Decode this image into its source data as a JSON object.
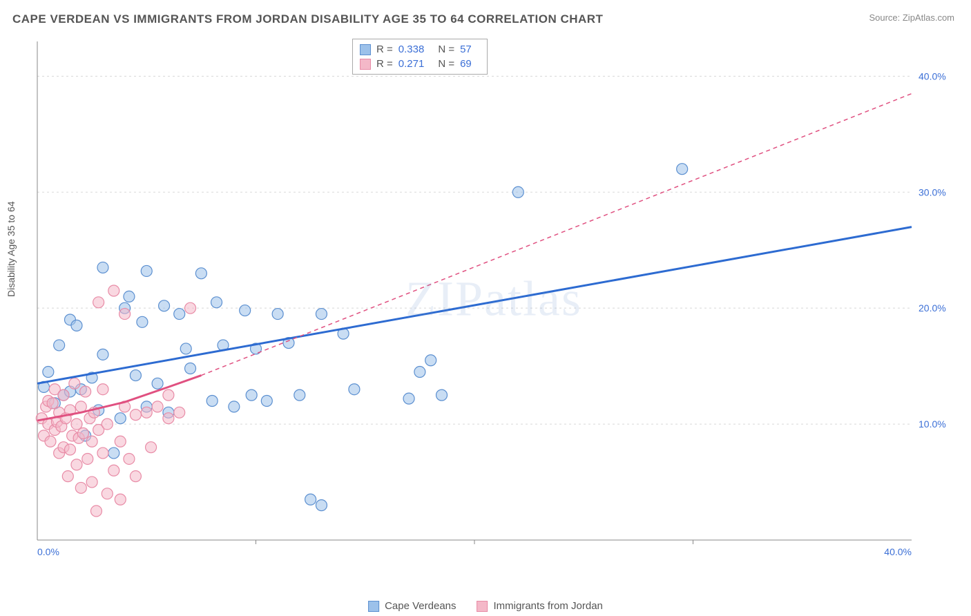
{
  "header": {
    "title": "CAPE VERDEAN VS IMMIGRANTS FROM JORDAN DISABILITY AGE 35 TO 64 CORRELATION CHART",
    "source": "Source: ZipAtlas.com"
  },
  "watermark": "ZIPatlas",
  "chart": {
    "type": "scatter",
    "y_axis_label": "Disability Age 35 to 64",
    "xlim": [
      0,
      40
    ],
    "ylim": [
      0,
      43
    ],
    "x_ticks": [
      0,
      40
    ],
    "x_tick_labels": [
      "0.0%",
      "40.0%"
    ],
    "y_ticks": [
      10,
      20,
      30,
      40
    ],
    "y_tick_labels": [
      "10.0%",
      "20.0%",
      "30.0%",
      "40.0%"
    ],
    "grid_color": "#d8d8d8",
    "axis_color": "#888888",
    "background_color": "#ffffff",
    "marker_radius": 8,
    "marker_opacity": 0.55,
    "trend_line_width_solid": 3,
    "trend_line_width_dashed": 1.5,
    "series": [
      {
        "name": "Cape Verdeans",
        "fill_color": "#9cc1ea",
        "stroke_color": "#5b8fd0",
        "trend_color": "#2d6bd1",
        "trend_style": "solid",
        "r_value": "0.338",
        "n_value": "57",
        "trend": {
          "x1": 0,
          "y1": 13.5,
          "x2": 40,
          "y2": 27
        },
        "points": [
          [
            0.3,
            13.2
          ],
          [
            0.5,
            14.5
          ],
          [
            0.8,
            11.8
          ],
          [
            1.0,
            16.8
          ],
          [
            1.2,
            12.5
          ],
          [
            1.5,
            19.0
          ],
          [
            1.5,
            12.8
          ],
          [
            1.8,
            18.5
          ],
          [
            2.0,
            13.0
          ],
          [
            2.2,
            9.0
          ],
          [
            2.5,
            14.0
          ],
          [
            2.8,
            11.2
          ],
          [
            3.0,
            16.0
          ],
          [
            3.0,
            23.5
          ],
          [
            3.5,
            7.5
          ],
          [
            3.8,
            10.5
          ],
          [
            4.0,
            20.0
          ],
          [
            4.2,
            21.0
          ],
          [
            4.5,
            14.2
          ],
          [
            4.8,
            18.8
          ],
          [
            5.0,
            11.5
          ],
          [
            5.0,
            23.2
          ],
          [
            5.5,
            13.5
          ],
          [
            5.8,
            20.2
          ],
          [
            6.0,
            11.0
          ],
          [
            6.5,
            19.5
          ],
          [
            6.8,
            16.5
          ],
          [
            7.0,
            14.8
          ],
          [
            7.5,
            23.0
          ],
          [
            8.0,
            12.0
          ],
          [
            8.2,
            20.5
          ],
          [
            8.5,
            16.8
          ],
          [
            9.0,
            11.5
          ],
          [
            9.5,
            19.8
          ],
          [
            9.8,
            12.5
          ],
          [
            10.0,
            16.5
          ],
          [
            10.5,
            12.0
          ],
          [
            11.0,
            19.5
          ],
          [
            11.5,
            17.0
          ],
          [
            12.0,
            12.5
          ],
          [
            12.5,
            3.5
          ],
          [
            13.0,
            19.5
          ],
          [
            13.0,
            3.0
          ],
          [
            14.0,
            17.8
          ],
          [
            14.5,
            13.0
          ],
          [
            17.0,
            12.2
          ],
          [
            17.5,
            14.5
          ],
          [
            18.0,
            15.5
          ],
          [
            18.5,
            12.5
          ],
          [
            22.0,
            30.0
          ],
          [
            29.5,
            32.0
          ]
        ]
      },
      {
        "name": "Immigrants from Jordan",
        "fill_color": "#f4b8c8",
        "stroke_color": "#e88ba6",
        "trend_color": "#e05080",
        "trend_style": "curve_then_dashed",
        "r_value": "0.271",
        "n_value": "69",
        "trend_curve": [
          [
            0,
            10.3
          ],
          [
            2,
            11.0
          ],
          [
            4,
            11.9
          ],
          [
            6,
            13.2
          ],
          [
            7.5,
            14.2
          ]
        ],
        "trend_dashed": {
          "x1": 7.5,
          "y1": 14.2,
          "x2": 40,
          "y2": 38.5
        },
        "points": [
          [
            0.2,
            10.5
          ],
          [
            0.3,
            9.0
          ],
          [
            0.4,
            11.5
          ],
          [
            0.5,
            12.0
          ],
          [
            0.5,
            10.0
          ],
          [
            0.6,
            8.5
          ],
          [
            0.7,
            11.8
          ],
          [
            0.8,
            9.5
          ],
          [
            0.8,
            13.0
          ],
          [
            0.9,
            10.2
          ],
          [
            1.0,
            7.5
          ],
          [
            1.0,
            11.0
          ],
          [
            1.1,
            9.8
          ],
          [
            1.2,
            12.5
          ],
          [
            1.2,
            8.0
          ],
          [
            1.3,
            10.5
          ],
          [
            1.4,
            5.5
          ],
          [
            1.5,
            11.2
          ],
          [
            1.5,
            7.8
          ],
          [
            1.6,
            9.0
          ],
          [
            1.7,
            13.5
          ],
          [
            1.8,
            10.0
          ],
          [
            1.8,
            6.5
          ],
          [
            1.9,
            8.8
          ],
          [
            2.0,
            11.5
          ],
          [
            2.0,
            4.5
          ],
          [
            2.1,
            9.2
          ],
          [
            2.2,
            12.8
          ],
          [
            2.3,
            7.0
          ],
          [
            2.4,
            10.5
          ],
          [
            2.5,
            5.0
          ],
          [
            2.5,
            8.5
          ],
          [
            2.6,
            11.0
          ],
          [
            2.7,
            2.5
          ],
          [
            2.8,
            9.5
          ],
          [
            2.8,
            20.5
          ],
          [
            3.0,
            7.5
          ],
          [
            3.0,
            13.0
          ],
          [
            3.2,
            4.0
          ],
          [
            3.2,
            10.0
          ],
          [
            3.5,
            6.0
          ],
          [
            3.5,
            21.5
          ],
          [
            3.8,
            8.5
          ],
          [
            3.8,
            3.5
          ],
          [
            4.0,
            11.5
          ],
          [
            4.0,
            19.5
          ],
          [
            4.2,
            7.0
          ],
          [
            4.5,
            5.5
          ],
          [
            4.5,
            10.8
          ],
          [
            5.0,
            11.0
          ],
          [
            5.2,
            8.0
          ],
          [
            5.5,
            11.5
          ],
          [
            6.0,
            10.5
          ],
          [
            6.0,
            12.5
          ],
          [
            6.5,
            11.0
          ],
          [
            7.0,
            20.0
          ]
        ]
      }
    ]
  },
  "stats_legend": {
    "rows": [
      {
        "swatch_fill": "#9cc1ea",
        "swatch_border": "#5b8fd0",
        "r_label": "R =",
        "r": "0.338",
        "n_label": "N =",
        "n": "57"
      },
      {
        "swatch_fill": "#f4b8c8",
        "swatch_border": "#e88ba6",
        "r_label": "R =",
        "r": "0.271",
        "n_label": "N =",
        "n": "69"
      }
    ]
  },
  "bottom_legend": {
    "items": [
      {
        "swatch_fill": "#9cc1ea",
        "swatch_border": "#5b8fd0",
        "label": "Cape Verdeans"
      },
      {
        "swatch_fill": "#f4b8c8",
        "swatch_border": "#e88ba6",
        "label": "Immigrants from Jordan"
      }
    ]
  }
}
